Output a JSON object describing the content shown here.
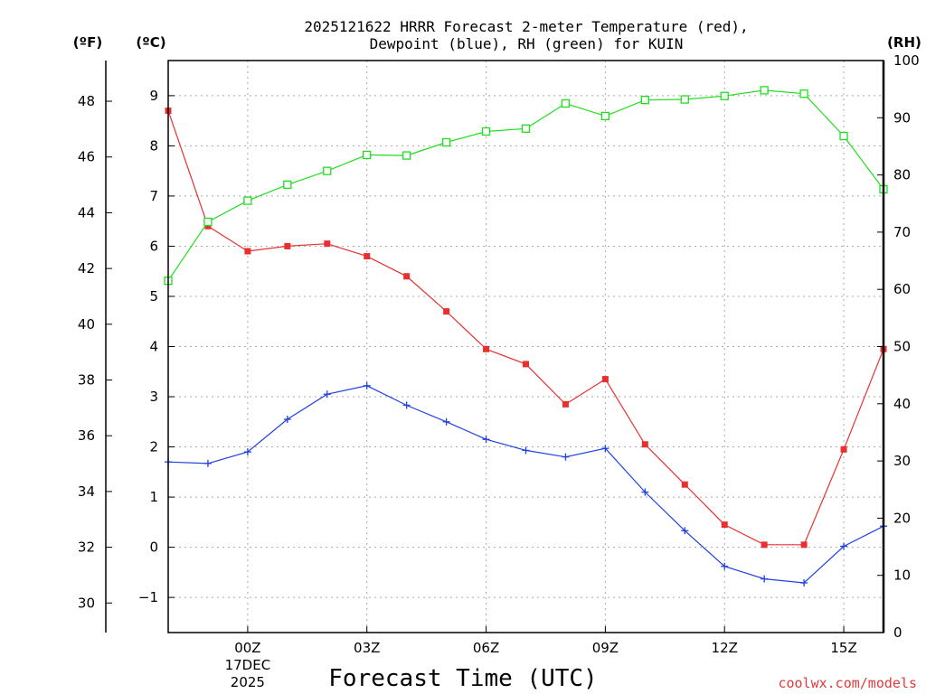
{
  "chart_data": {
    "type": "line",
    "title_line1": "2025121622 HRRR Forecast 2-meter Temperature (red),",
    "title_line2": "Dewpoint (blue), RH (green) for KUIN",
    "xlabel": "Forecast Time (UTC)",
    "unit_f": "(ºF)",
    "unit_c": "(ºC)",
    "unit_rh": "(RH)",
    "credit": "coolwx.com/models",
    "hours": [
      -2,
      -1,
      0,
      1,
      2,
      3,
      4,
      5,
      6,
      7,
      8,
      9,
      10,
      11,
      12,
      13,
      14,
      15,
      16
    ],
    "xlim": [
      -2,
      16
    ],
    "x_ticks": [
      {
        "hour": 0,
        "label": "00Z",
        "sub1": "17DEC",
        "sub2": "2025"
      },
      {
        "hour": 3,
        "label": "03Z"
      },
      {
        "hour": 6,
        "label": "06Z"
      },
      {
        "hour": 9,
        "label": "09Z"
      },
      {
        "hour": 12,
        "label": "12Z"
      },
      {
        "hour": 15,
        "label": "15Z"
      }
    ],
    "c_ylim": [
      -1.7,
      9.7
    ],
    "c_ticks": [
      "-1",
      "0",
      "1",
      "2",
      "3",
      "4",
      "5",
      "6",
      "7",
      "8",
      "9"
    ],
    "f_ticks": [
      "30",
      "32",
      "34",
      "36",
      "38",
      "40",
      "42",
      "44",
      "46",
      "48"
    ],
    "rh_ylim": [
      0,
      100
    ],
    "rh_ticks": [
      "0",
      "10",
      "20",
      "30",
      "40",
      "50",
      "60",
      "70",
      "80",
      "90",
      "100"
    ],
    "series": [
      {
        "name": "Temperature",
        "axis": "c",
        "color": "#e83030",
        "marker": "filled-square",
        "values": [
          8.7,
          6.4,
          5.9,
          6.0,
          6.05,
          5.8,
          5.4,
          4.7,
          3.95,
          3.65,
          2.85,
          3.35,
          2.05,
          1.25,
          0.45,
          0.05,
          0.05,
          1.95,
          3.95
        ]
      },
      {
        "name": "Dewpoint",
        "axis": "c",
        "color": "#2040e0",
        "marker": "plus",
        "values": [
          1.7,
          1.67,
          1.9,
          2.55,
          3.05,
          3.22,
          2.83,
          2.5,
          2.15,
          1.93,
          1.8,
          1.97,
          1.1,
          0.33,
          -0.38,
          -0.63,
          -0.71,
          0.02,
          0.42
        ]
      },
      {
        "name": "RH",
        "axis": "rh",
        "color": "#20dd20",
        "marker": "open-square",
        "values": [
          61.5,
          71.8,
          75.5,
          78.3,
          80.7,
          83.5,
          83.4,
          85.7,
          87.6,
          88.1,
          92.5,
          90.3,
          93.1,
          93.2,
          93.8,
          94.8,
          94.2,
          86.8,
          77.5
        ]
      }
    ]
  }
}
